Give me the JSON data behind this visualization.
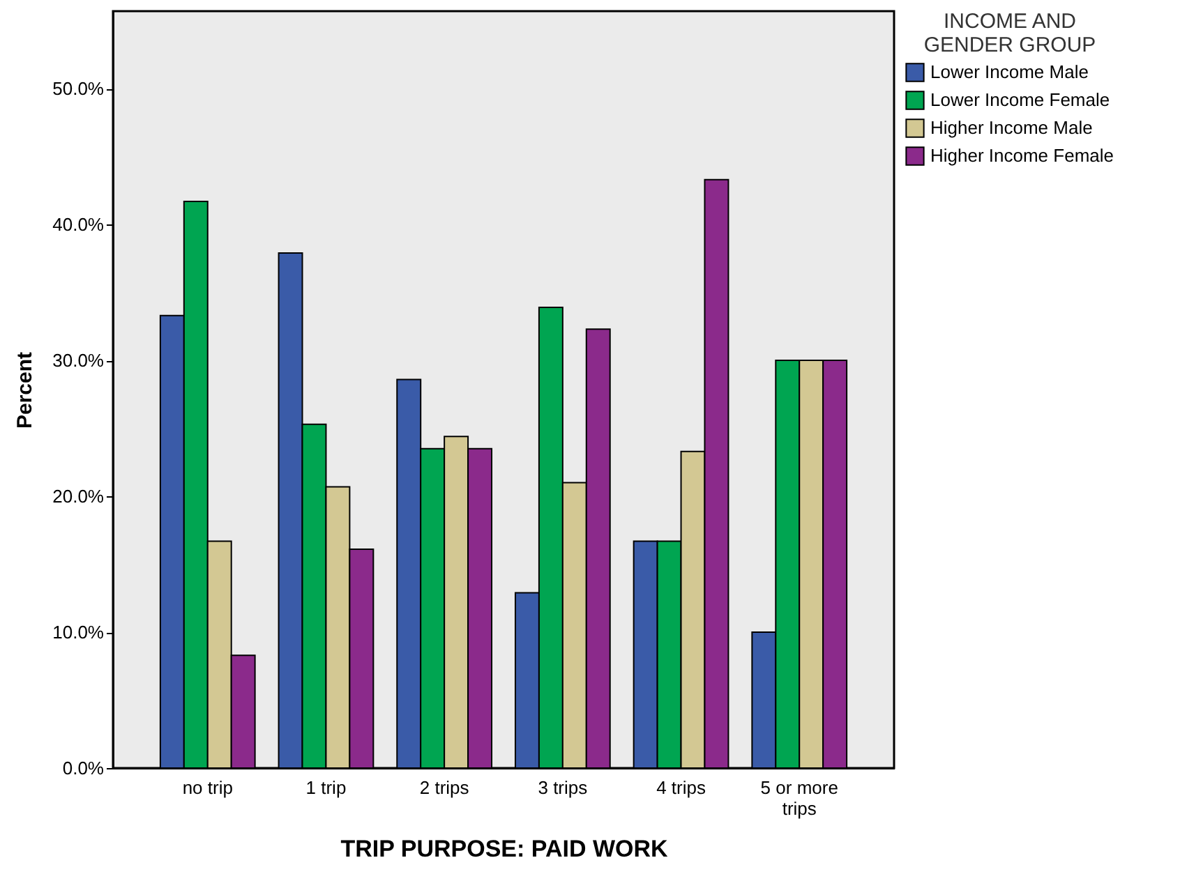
{
  "chart_data": {
    "type": "bar",
    "xlabel": "TRIP PURPOSE: PAID WORK",
    "ylabel": "Percent",
    "legend_title": "INCOME AND GENDER GROUP",
    "categories": [
      "no trip",
      "1 trip",
      "2 trips",
      "3 trips",
      "4 trips",
      "5 or more trips"
    ],
    "series": [
      {
        "name": "Lower Income Male",
        "color": "#3a5ba8",
        "values": [
          33.3,
          37.9,
          28.6,
          12.9,
          16.7,
          10.0
        ]
      },
      {
        "name": "Lower Income Female",
        "color": "#00a551",
        "values": [
          41.7,
          25.3,
          23.5,
          33.9,
          16.7,
          30.0
        ]
      },
      {
        "name": "Higher Income Male",
        "color": "#d3c893",
        "values": [
          16.7,
          20.7,
          24.4,
          21.0,
          23.3,
          30.0
        ]
      },
      {
        "name": "Higher Income Female",
        "color": "#8b2a8b",
        "values": [
          8.3,
          16.1,
          23.5,
          32.3,
          43.3,
          30.0
        ]
      }
    ],
    "ylim": [
      0,
      55.7
    ],
    "yticks": [
      {
        "value": 0,
        "label": "0.0%"
      },
      {
        "value": 10,
        "label": "10.0%"
      },
      {
        "value": 20,
        "label": "20.0%"
      },
      {
        "value": 30,
        "label": "30.0%"
      },
      {
        "value": 40,
        "label": "40.0%"
      },
      {
        "value": 50,
        "label": "50.0%"
      }
    ],
    "grid": false,
    "legend": "top right"
  }
}
